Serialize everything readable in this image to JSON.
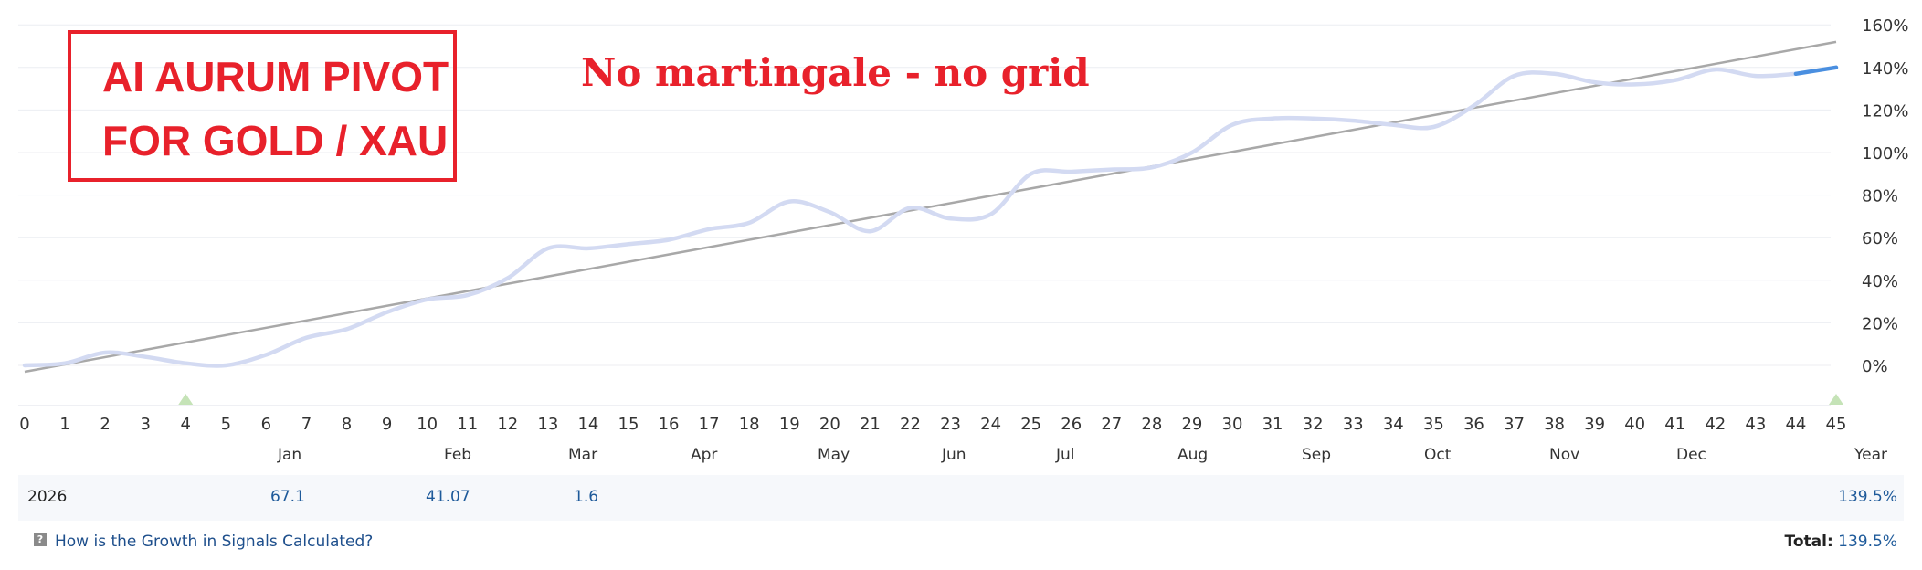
{
  "header": {
    "title_line1": "AI AURUM PIVOT",
    "title_line2": "FOR GOLD / XAU",
    "subtitle": "No martingale - no grid"
  },
  "colors": {
    "growth": "#d3daf2",
    "growth_recent": "#4a8fe0",
    "trend": "#a8a8a8",
    "accent": "#e8212b",
    "grid": "#eceef2",
    "marker": "#c5e3b7"
  },
  "chart_data": {
    "type": "line",
    "title": "",
    "xlabel": "",
    "ylabel": "",
    "ylim": [
      -18,
      162
    ],
    "y_ticks": [
      "160%",
      "140%",
      "120%",
      "100%",
      "80%",
      "60%",
      "40%",
      "20%",
      "0%"
    ],
    "y_tick_values": [
      160,
      140,
      120,
      100,
      80,
      60,
      40,
      20,
      0
    ],
    "x_ticks": [
      0,
      1,
      2,
      3,
      4,
      5,
      6,
      7,
      8,
      9,
      10,
      11,
      12,
      13,
      14,
      15,
      16,
      17,
      18,
      19,
      20,
      21,
      22,
      23,
      24,
      25,
      26,
      27,
      28,
      29,
      30,
      31,
      32,
      33,
      34,
      35,
      36,
      37,
      38,
      39,
      40,
      41,
      42,
      43,
      44,
      45
    ],
    "grid": true,
    "series": [
      {
        "role": "growth",
        "x": [
          0,
          1,
          2,
          3,
          4,
          5,
          6,
          7,
          8,
          9,
          10,
          11,
          12,
          13,
          14,
          15,
          16,
          17,
          18,
          19,
          20,
          21,
          22,
          23,
          24,
          25,
          26,
          27,
          28,
          29,
          30,
          31,
          32,
          33,
          34,
          35,
          36,
          37,
          38,
          39,
          40,
          41,
          42,
          43,
          44,
          45
        ],
        "y": [
          0,
          1,
          6,
          4,
          1,
          0,
          5,
          13,
          17,
          25,
          31,
          33,
          41,
          55,
          55,
          57,
          59,
          64,
          67,
          77,
          72,
          63,
          74,
          69,
          71,
          90,
          91,
          92,
          93,
          100,
          113,
          116,
          116,
          115,
          113,
          112,
          122,
          136,
          137,
          133,
          132,
          134,
          139,
          136,
          137,
          140
        ]
      },
      {
        "role": "trend",
        "x": [
          0,
          45
        ],
        "y": [
          -3,
          152
        ]
      }
    ],
    "markers_x": [
      4,
      45
    ],
    "month_labels": [
      "Jan",
      "Feb",
      "Mar",
      "Apr",
      "May",
      "Jun",
      "Jul",
      "Aug",
      "Sep",
      "Oct",
      "Nov",
      "Dec",
      "Year"
    ]
  },
  "table": {
    "year": "2026",
    "values": [
      "67.1",
      "41.07",
      "1.6"
    ],
    "year_total": "139.5%"
  },
  "footer": {
    "help_icon": "?",
    "link_text": "How is the Growth in Signals Calculated?",
    "total_label": "Total:",
    "total_value": "139.5%"
  }
}
